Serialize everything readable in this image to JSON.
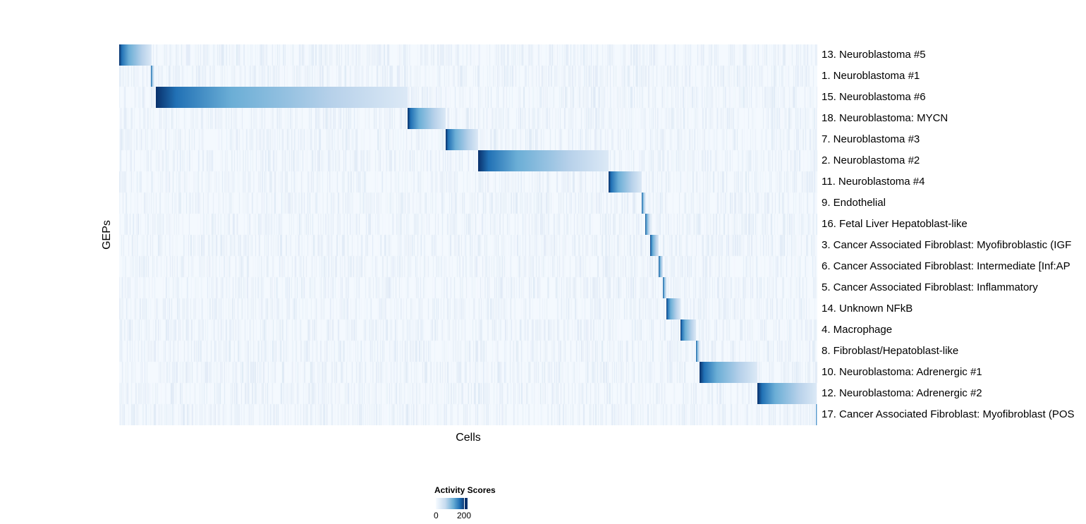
{
  "chart_data": {
    "type": "heatmap",
    "xlabel": "Cells",
    "ylabel": "GEPs",
    "n_cells": 990,
    "colorscale": {
      "title": "Activity Scores",
      "min": 0,
      "max": 200,
      "tick_labels": [
        "0",
        "200"
      ],
      "low_color": "#f7fbff",
      "high_color": "#08306b"
    },
    "rows": [
      {
        "label": "13. Neuroblastoma #5",
        "block": [
          0,
          46
        ]
      },
      {
        "label": "1. Neuroblastoma #1",
        "block": [
          45,
          49
        ]
      },
      {
        "label": "15. Neuroblastoma #6",
        "block": [
          52,
          409
        ]
      },
      {
        "label": "18. Neuroblastoma: MYCN",
        "block": [
          409,
          463
        ]
      },
      {
        "label": "7. Neuroblastoma #3",
        "block": [
          463,
          509
        ]
      },
      {
        "label": "2. Neuroblastoma #2",
        "block": [
          509,
          694
        ]
      },
      {
        "label": "11. Neuroblastoma #4",
        "block": [
          694,
          741
        ]
      },
      {
        "label": "9. Endothelial",
        "block": [
          741,
          746
        ]
      },
      {
        "label": "16. Fetal Liver Hepatoblast-like",
        "block": [
          746,
          753
        ]
      },
      {
        "label": "3. Cancer Associated Fibroblast: Myofibroblastic (IGF",
        "block": [
          753,
          765
        ]
      },
      {
        "label": "6. Cancer Associated Fibroblast: Intermediate [Inf:AP",
        "block": [
          765,
          771
        ]
      },
      {
        "label": "5. Cancer Associated Fibroblast: Inflammatory",
        "block": [
          771,
          776
        ]
      },
      {
        "label": "14. Unknown NFkB",
        "block": [
          776,
          796
        ]
      },
      {
        "label": "4. Macrophage",
        "block": [
          796,
          818
        ]
      },
      {
        "label": "8. Fibroblast/Hepatoblast-like",
        "block": [
          818,
          823
        ]
      },
      {
        "label": "10. Neuroblastoma: Adrenergic #1",
        "block": [
          823,
          905
        ]
      },
      {
        "label": "12. Neuroblastoma: Adrenergic #2",
        "block": [
          905,
          989
        ]
      },
      {
        "label": "17. Cancer Associated Fibroblast: Myofibroblast (POS",
        "block": [
          988,
          990
        ]
      }
    ]
  }
}
